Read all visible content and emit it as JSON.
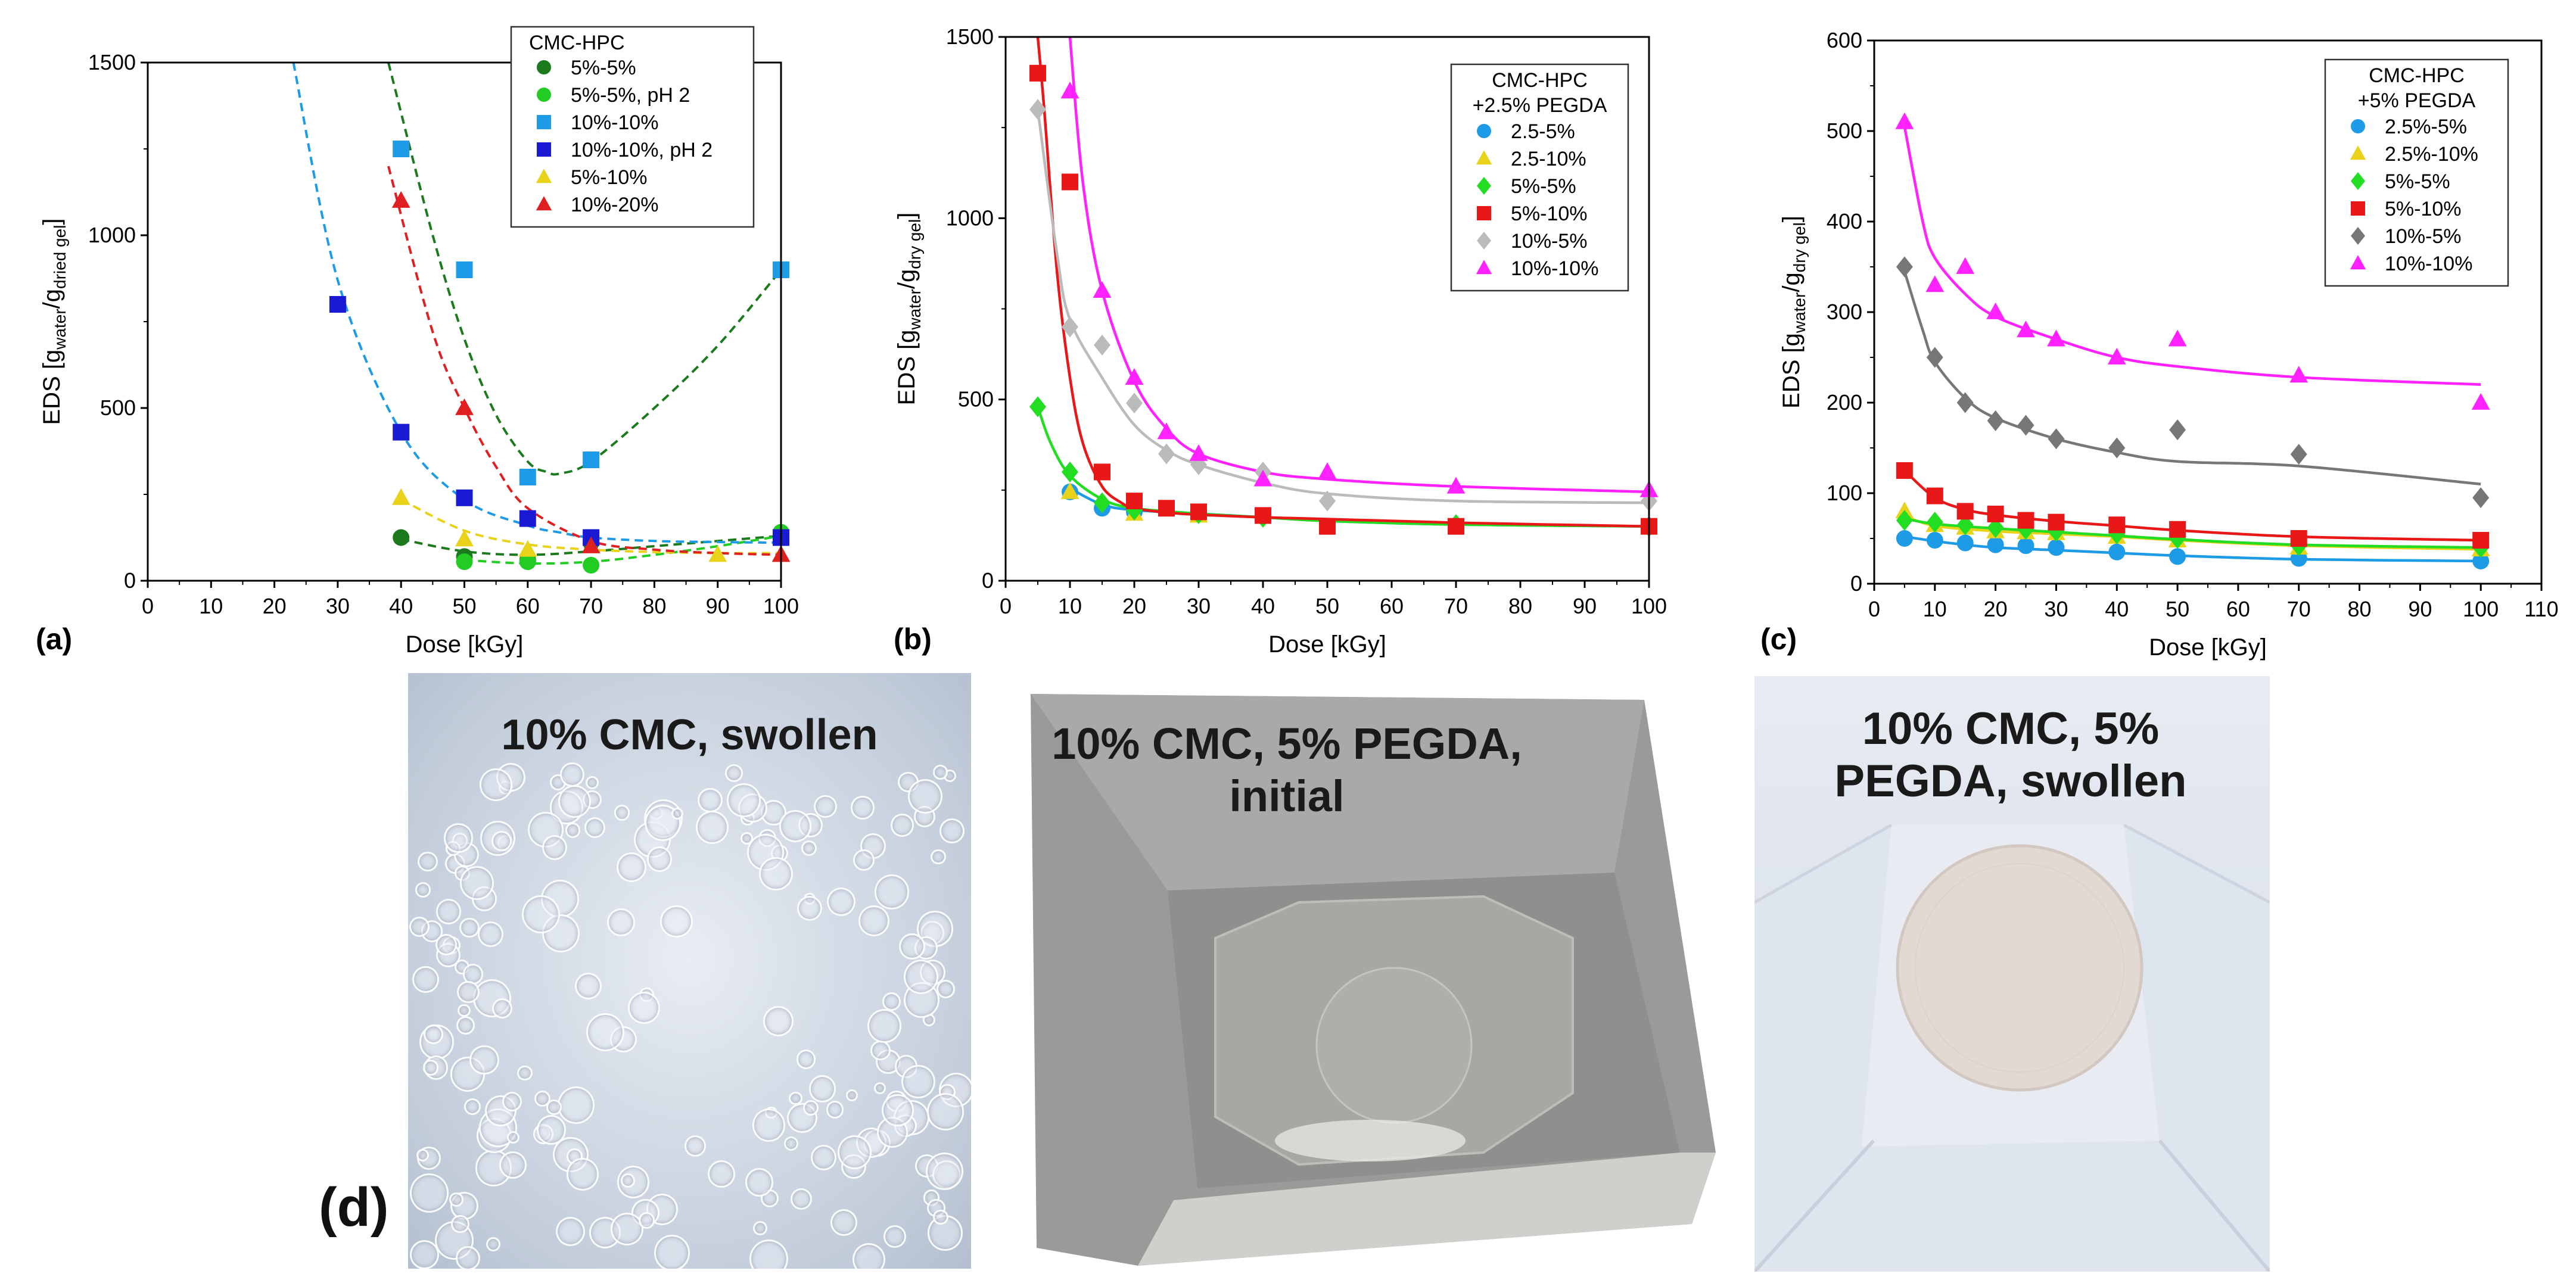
{
  "chart_data": [
    {
      "panel_label": "(a)",
      "type": "scatter",
      "xlabel": "Dose [kGy]",
      "ylabel": {
        "main": "EDS",
        "parts": [
          [
            "[g",
            "n"
          ],
          [
            "water",
            "sub"
          ],
          [
            "/g",
            "n"
          ],
          [
            "dried gel",
            "sub"
          ],
          [
            "]",
            "n"
          ]
        ]
      },
      "xlim": [
        0,
        100
      ],
      "ylim": [
        0,
        1500
      ],
      "xticks": [
        0,
        10,
        20,
        30,
        40,
        50,
        60,
        70,
        80,
        90,
        100
      ],
      "yticks": [
        0,
        500,
        1000,
        1500
      ],
      "legend": {
        "title": [
          "CMC-HPC"
        ],
        "placement": "top-right"
      },
      "series": [
        {
          "name": "5%-5%",
          "color": "#1b7a1b",
          "marker": "circle",
          "x": [
            40,
            50,
            60,
            70,
            100
          ],
          "y": [
            125,
            70,
            60,
            110,
            140
          ],
          "fit": {
            "x": [
              40,
              50,
              60,
              70,
              80,
              90,
              100
            ],
            "y": [
              120,
              85,
              75,
              85,
              100,
              115,
              130
            ],
            "dash": true
          }
        },
        {
          "name": "5%-5%, pH 2",
          "color": "#22cc22",
          "marker": "circle",
          "x": [
            50,
            60,
            70,
            100
          ],
          "y": [
            55,
            55,
            45,
            140
          ],
          "fit": {
            "x": [
              50,
              60,
              70,
              80,
              90,
              100
            ],
            "y": [
              60,
              50,
              55,
              75,
              100,
              130
            ],
            "dash": true
          }
        },
        {
          "name": "10%-10%",
          "color": "#1e9be6",
          "marker": "square",
          "x": [
            40,
            50,
            60,
            70,
            100
          ],
          "y": [
            1250,
            900,
            300,
            350,
            900
          ],
          "fit": {
            "x": [
              23,
              30,
              40,
              50,
              60,
              65,
              70,
              80,
              90,
              100
            ],
            "y": [
              1500,
              870,
              430,
              235,
              160,
              140,
              125,
              115,
              112,
              110
            ],
            "dash": true
          }
        },
        {
          "name": "10%-10%, pH 2",
          "color": "#1a1ad4",
          "marker": "square",
          "x": [
            30,
            40,
            50,
            60,
            70,
            100
          ],
          "y": [
            800,
            430,
            240,
            180,
            125,
            125
          ],
          "fit": null
        },
        {
          "name": "5%-10%",
          "color": "#e8d21a",
          "marker": "triangle",
          "x": [
            40,
            50,
            60,
            90
          ],
          "y": [
            240,
            120,
            90,
            75
          ],
          "fit": {
            "x": [
              40,
              50,
              60,
              70,
              80,
              90,
              100
            ],
            "y": [
              235,
              145,
              105,
              90,
              83,
              80,
              80
            ],
            "dash": true
          }
        },
        {
          "name": "10%-20%",
          "color": "#e02020",
          "marker": "triangle",
          "x": [
            40,
            50,
            70,
            100
          ],
          "y": [
            1100,
            500,
            100,
            75
          ],
          "fit": {
            "x": [
              38,
              45,
              50,
              55,
              60,
              70,
              80,
              90,
              100
            ],
            "y": [
              1200,
              720,
              500,
              330,
              210,
              115,
              90,
              80,
              75
            ],
            "dash": true
          }
        },
        {
          "name": "",
          "color": "#1b7a1b",
          "marker": "none",
          "x": [],
          "y": [],
          "fit": {
            "x": [
              38,
              45,
              50,
              55,
              60,
              63,
              65,
              70,
              80,
              90,
              100
            ],
            "y": [
              1500,
              1000,
              700,
              480,
              345,
              315,
              310,
              345,
              500,
              680,
              900
            ],
            "dash": true
          }
        }
      ]
    },
    {
      "panel_label": "(b)",
      "type": "scatter",
      "xlabel": "Dose [kGy]",
      "ylabel": {
        "main": "EDS",
        "parts": [
          [
            "[g",
            "n"
          ],
          [
            "water",
            "sub"
          ],
          [
            "/g",
            "n"
          ],
          [
            "dry gel",
            "sub"
          ],
          [
            "]",
            "n"
          ]
        ]
      },
      "xlim": [
        0,
        100
      ],
      "ylim": [
        0,
        1500
      ],
      "xticks": [
        0,
        10,
        20,
        30,
        40,
        50,
        60,
        70,
        80,
        90,
        100
      ],
      "yticks": [
        0,
        500,
        1000,
        1500
      ],
      "legend": {
        "title": [
          "CMC-HPC",
          "+2.5% PEGDA"
        ],
        "placement": "top-right"
      },
      "series": [
        {
          "name": "2.5-5%",
          "color": "#1e9be6",
          "marker": "circle",
          "x": [
            10,
            15,
            20
          ],
          "y": [
            245,
            200,
            190
          ],
          "fit": {
            "x": [
              10,
              15,
              20,
              30,
              40,
              50,
              70,
              100
            ],
            "y": [
              255,
              210,
              195,
              185,
              175,
              165,
              155,
              150
            ],
            "dash": false
          }
        },
        {
          "name": "2.5-10%",
          "color": "#e8d21a",
          "marker": "triangle",
          "x": [
            10,
            20,
            30
          ],
          "y": [
            245,
            185,
            180
          ],
          "fit": null
        },
        {
          "name": "5%-5%",
          "color": "#22dd22",
          "marker": "diamond",
          "x": [
            5,
            10,
            15,
            20,
            30,
            40,
            70,
            100
          ],
          "y": [
            480,
            300,
            215,
            195,
            185,
            175,
            155,
            150
          ],
          "fit": {
            "x": [
              5,
              7,
              10,
              15,
              20,
              30,
              40,
              50,
              70,
              100
            ],
            "y": [
              480,
              380,
              290,
              225,
              200,
              185,
              175,
              165,
              155,
              150
            ],
            "dash": false
          }
        },
        {
          "name": "5%-10%",
          "color": "#e81818",
          "marker": "square",
          "x": [
            5,
            10,
            15,
            20,
            25,
            30,
            40,
            50,
            70,
            100
          ],
          "y": [
            1400,
            1100,
            300,
            220,
            200,
            190,
            180,
            150,
            150,
            150
          ],
          "fit": {
            "x": [
              5,
              6,
              8,
              10,
              12,
              15,
              18,
              20,
              25,
              30,
              40,
              50,
              70,
              100
            ],
            "y": [
              1500,
              1300,
              850,
              560,
              380,
              260,
              215,
              200,
              188,
              182,
              175,
              170,
              160,
              150
            ],
            "dash": false
          }
        },
        {
          "name": "10%-5%",
          "color": "#bbbbbb",
          "marker": "diamond",
          "x": [
            5,
            10,
            15,
            20,
            25,
            30,
            40,
            50,
            100
          ],
          "y": [
            1300,
            700,
            650,
            490,
            350,
            320,
            300,
            220,
            220
          ],
          "fit": {
            "x": [
              5,
              8,
              10,
              15,
              20,
              25,
              30,
              40,
              50,
              70,
              100
            ],
            "y": [
              1300,
              900,
              720,
              560,
              430,
              360,
              320,
              270,
              240,
              220,
              215
            ],
            "dash": false
          }
        },
        {
          "name": "10%-10%",
          "color": "#ff22ff",
          "marker": "triangle",
          "x": [
            10,
            15,
            20,
            25,
            30,
            40,
            50,
            70,
            100
          ],
          "y": [
            1350,
            800,
            560,
            410,
            350,
            280,
            300,
            260,
            250
          ],
          "fit": {
            "x": [
              10,
              12,
              15,
              20,
              25,
              30,
              40,
              50,
              70,
              100
            ],
            "y": [
              1500,
              1100,
              800,
              550,
              420,
              350,
              300,
              280,
              260,
              245
            ],
            "dash": false
          }
        }
      ]
    },
    {
      "panel_label": "(c)",
      "type": "scatter",
      "xlabel": "Dose [kGy]",
      "ylabel": {
        "main": "EDS",
        "parts": [
          [
            "[g",
            "n"
          ],
          [
            "water",
            "sub"
          ],
          [
            "/g",
            "n"
          ],
          [
            "dry gel",
            "sub"
          ],
          [
            "]",
            "n"
          ]
        ]
      },
      "xlim": [
        0,
        110
      ],
      "ylim": [
        0,
        600
      ],
      "xticks": [
        0,
        10,
        20,
        30,
        40,
        50,
        60,
        70,
        80,
        90,
        100,
        110
      ],
      "yticks": [
        0,
        100,
        200,
        300,
        400,
        500,
        600
      ],
      "legend": {
        "title": [
          "CMC-HPC",
          "+5% PEGDA"
        ],
        "placement": "top-right"
      },
      "series": [
        {
          "name": "2.5%-5%",
          "color": "#1e9be6",
          "marker": "circle",
          "x": [
            5,
            10,
            15,
            20,
            25,
            30,
            40,
            50,
            70,
            100
          ],
          "y": [
            50,
            48,
            45,
            43,
            42,
            40,
            35,
            30,
            28,
            25
          ],
          "fit": {
            "x": [
              5,
              10,
              15,
              20,
              30,
              40,
              50,
              70,
              100
            ],
            "y": [
              52,
              47,
              43,
              40,
              37,
              34,
              31,
              27,
              25
            ],
            "dash": false
          }
        },
        {
          "name": "2.5%-10%",
          "color": "#e8d21a",
          "marker": "triangle",
          "x": [
            5,
            10,
            15,
            20,
            25,
            30,
            40,
            50,
            70,
            100
          ],
          "y": [
            80,
            65,
            62,
            58,
            57,
            56,
            52,
            48,
            40,
            38
          ],
          "fit": {
            "x": [
              5,
              10,
              20,
              30,
              40,
              50,
              70,
              100
            ],
            "y": [
              75,
              64,
              58,
              55,
              52,
              48,
              42,
              38
            ],
            "dash": false
          }
        },
        {
          "name": "5%-5%",
          "color": "#22dd22",
          "marker": "diamond",
          "x": [
            5,
            10,
            15,
            20,
            25,
            30,
            40,
            50,
            70,
            100
          ],
          "y": [
            70,
            68,
            65,
            62,
            60,
            58,
            55,
            50,
            42,
            40
          ],
          "fit": {
            "x": [
              5,
              10,
              20,
              30,
              40,
              50,
              70,
              100
            ],
            "y": [
              72,
              66,
              61,
              57,
              53,
              49,
              43,
              40
            ],
            "dash": false
          }
        },
        {
          "name": "5%-10%",
          "color": "#e81818",
          "marker": "square",
          "x": [
            5,
            10,
            15,
            20,
            25,
            30,
            40,
            50,
            70,
            100
          ],
          "y": [
            125,
            97,
            80,
            77,
            70,
            68,
            65,
            60,
            50,
            48
          ],
          "fit": {
            "x": [
              5,
              10,
              15,
              20,
              30,
              40,
              50,
              70,
              100
            ],
            "y": [
              125,
              95,
              82,
              76,
              69,
              64,
              59,
              52,
              48
            ],
            "dash": false
          }
        },
        {
          "name": "10%-5%",
          "color": "#777777",
          "marker": "diamond",
          "x": [
            5,
            10,
            15,
            20,
            25,
            30,
            40,
            50,
            70,
            100
          ],
          "y": [
            350,
            250,
            200,
            180,
            175,
            160,
            150,
            170,
            143,
            95
          ],
          "fit": {
            "x": [
              5,
              8,
              10,
              15,
              20,
              30,
              40,
              50,
              70,
              100
            ],
            "y": [
              345,
              280,
              245,
              205,
              183,
              160,
              145,
              135,
              130,
              110
            ],
            "dash": false
          }
        },
        {
          "name": "10%-10%",
          "color": "#ff22ff",
          "marker": "triangle",
          "x": [
            5,
            10,
            15,
            20,
            25,
            30,
            40,
            50,
            70,
            100
          ],
          "y": [
            510,
            330,
            350,
            300,
            280,
            270,
            250,
            270,
            230,
            200
          ],
          "fit": {
            "x": [
              5,
              8,
              10,
              15,
              20,
              30,
              40,
              50,
              70,
              100
            ],
            "y": [
              505,
              400,
              360,
              320,
              295,
              270,
              250,
              240,
              228,
              220
            ],
            "dash": false
          }
        }
      ]
    }
  ],
  "photos": {
    "label": "(d)",
    "captions": [
      "10% CMC, swollen",
      "10% CMC, 5% PEGDA, initial",
      "10% CMC, 5% PEGDA, swollen"
    ]
  }
}
